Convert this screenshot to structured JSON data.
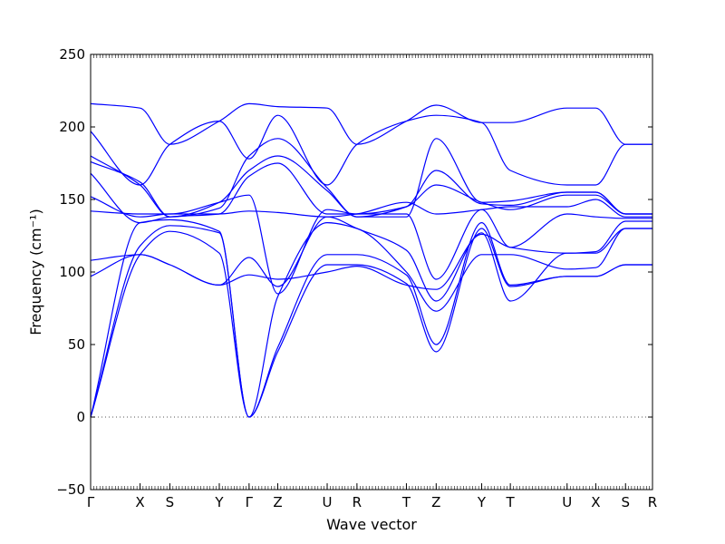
{
  "chart_data": {
    "type": "line",
    "xlabel": "Wave vector",
    "ylabel": "Frequency (cm⁻¹)",
    "ylim": [
      -50,
      250
    ],
    "yticks": [
      -50,
      0,
      50,
      100,
      150,
      200,
      250
    ],
    "kpoints": [
      {
        "label": "Γ",
        "x": 0
      },
      {
        "label": "X",
        "x": 0.88
      },
      {
        "label": "S",
        "x": 1.41
      },
      {
        "label": "Y",
        "x": 2.29
      },
      {
        "label": "Γ",
        "x": 2.82
      },
      {
        "label": "Z",
        "x": 3.33
      },
      {
        "label": "U",
        "x": 4.21
      },
      {
        "label": "R",
        "x": 4.74
      },
      {
        "label": "T",
        "x": 5.62
      },
      {
        "label": "Z",
        "x": 6.15
      },
      {
        "label": "Y",
        "x": 6.96
      },
      {
        "label": "T",
        "x": 7.47
      },
      {
        "label": "U",
        "x": 8.48
      },
      {
        "label": "X",
        "x": 8.99
      },
      {
        "label": "S",
        "x": 9.52
      },
      {
        "label": "R",
        "x": 10.0
      }
    ],
    "zero_line": true,
    "line_color": "#0000ff",
    "zero_line_color": "#555555",
    "series": [
      {
        "values": [
          0,
          112,
          128,
          113,
          0,
          45,
          105,
          105,
          92,
          45,
          130,
          90,
          97,
          97,
          105,
          105
        ]
      },
      {
        "values": [
          0,
          118,
          132,
          127,
          0,
          48,
          112,
          112,
          98,
          50,
          134,
          91,
          97,
          97,
          105,
          105
        ]
      },
      {
        "values": [
          0,
          134,
          136,
          128,
          0,
          83,
          134,
          130,
          100,
          73,
          112,
          112,
          102,
          103,
          130,
          130
        ]
      },
      {
        "values": [
          97,
          112,
          105,
          91,
          110,
          90,
          138,
          130,
          115,
          80,
          127,
          80,
          113,
          113,
          130,
          130
        ]
      },
      {
        "values": [
          108,
          112,
          105,
          91,
          98,
          95,
          100,
          104,
          91,
          88,
          126,
          117,
          113,
          114,
          135,
          135
        ]
      },
      {
        "values": [
          142,
          140,
          140,
          148,
          153,
          85,
          143,
          140,
          140,
          95,
          143,
          117,
          140,
          138,
          137,
          137
        ]
      },
      {
        "values": [
          152,
          138,
          140,
          140,
          142,
          141,
          138,
          140,
          148,
          140,
          143,
          145,
          145,
          150,
          138,
          138
        ]
      },
      {
        "values": [
          168,
          134,
          138,
          140,
          166,
          175,
          140,
          140,
          145,
          160,
          148,
          143,
          153,
          153,
          140,
          140
        ]
      },
      {
        "values": [
          176,
          162,
          138,
          148,
          170,
          180,
          156,
          138,
          145,
          170,
          147,
          146,
          155,
          155,
          140,
          140
        ]
      },
      {
        "values": [
          180,
          160,
          138,
          144,
          180,
          192,
          158,
          138,
          138,
          192,
          148,
          149,
          155,
          155,
          140,
          140
        ]
      },
      {
        "values": [
          197,
          160,
          188,
          204,
          178,
          208,
          160,
          188,
          204,
          208,
          203,
          170,
          160,
          160,
          188,
          188
        ]
      },
      {
        "values": [
          216,
          213,
          188,
          204,
          216,
          214,
          213,
          188,
          204,
          215,
          203,
          203,
          213,
          213,
          188,
          188
        ]
      }
    ]
  }
}
